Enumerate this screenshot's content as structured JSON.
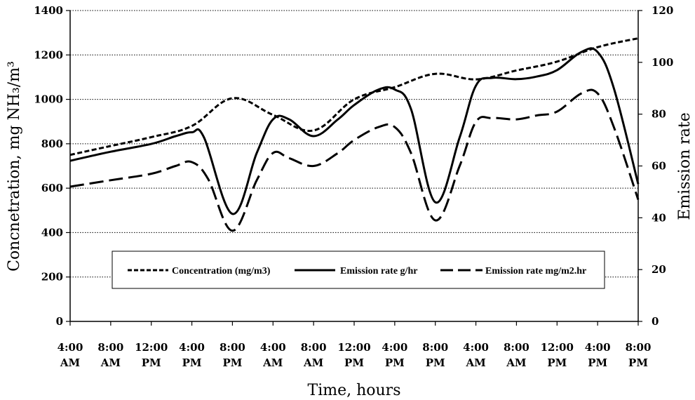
{
  "chart_data": {
    "type": "line",
    "xlabel": "Time, hours",
    "ylabel": "Concnetration, mg NH₃/m³",
    "y2label": "Emission rate",
    "categories": [
      [
        "4:00",
        "AM"
      ],
      [
        "8:00",
        "AM"
      ],
      [
        "12:00",
        "PM"
      ],
      [
        "4:00",
        "PM"
      ],
      [
        "8:00",
        "PM"
      ],
      [
        "4:00",
        "AM"
      ],
      [
        "8:00",
        "AM"
      ],
      [
        "12:00",
        "PM"
      ],
      [
        "4:00",
        "PM"
      ],
      [
        "8:00",
        "PM"
      ],
      [
        "4:00",
        "AM"
      ],
      [
        "8:00",
        "AM"
      ],
      [
        "12:00",
        "PM"
      ],
      [
        "4:00",
        "PM"
      ],
      [
        "8:00",
        "PM"
      ]
    ],
    "ylim": [
      0,
      1400
    ],
    "yticks": [
      0,
      200,
      400,
      600,
      800,
      1000,
      1200,
      1400
    ],
    "y2lim": [
      0,
      120
    ],
    "y2ticks": [
      0,
      20,
      40,
      60,
      80,
      100,
      120
    ],
    "grid": "horizontal dotted",
    "legend": "inside-bottom",
    "series": [
      {
        "name": "Concentration (mg/m3)",
        "axis": "left",
        "style": "short-dash",
        "x": [
          0,
          1,
          2,
          3,
          4,
          5,
          6,
          7,
          8,
          9,
          10,
          11,
          12,
          13,
          14
        ],
        "values": [
          750,
          790,
          830,
          880,
          1005,
          930,
          860,
          1000,
          1055,
          1115,
          1090,
          1130,
          1170,
          1235,
          1275
        ]
      },
      {
        "name": "Emission rate g/hr",
        "axis": "right",
        "style": "solid",
        "x": [
          0,
          1,
          2,
          2.6,
          3,
          3.3,
          4,
          4.6,
          5,
          5.4,
          6,
          6.6,
          7,
          7.6,
          8,
          8.4,
          9,
          9.6,
          10,
          10.4,
          11,
          11.5,
          12,
          12.6,
          13,
          13.4,
          14
        ],
        "values": [
          62,
          65.5,
          68.5,
          71.5,
          73,
          71,
          41.5,
          65,
          78,
          78,
          71.5,
          78,
          83.5,
          89.5,
          89.5,
          82,
          46,
          71,
          91,
          94,
          93.5,
          94.5,
          97,
          104,
          104,
          90,
          53
        ]
      },
      {
        "name": "Emission rate mg/m2.hr",
        "axis": "right",
        "style": "long-dash",
        "x": [
          0,
          1,
          2,
          2.6,
          3,
          3.4,
          4,
          4.6,
          5,
          5.4,
          6,
          6.6,
          7,
          7.6,
          8,
          8.4,
          9,
          9.6,
          10,
          10.4,
          11,
          11.5,
          12,
          12.6,
          13,
          13.4,
          14
        ],
        "values": [
          52,
          54.5,
          57,
          60,
          61.5,
          55,
          35,
          54.5,
          65,
          63,
          60,
          65,
          70,
          75,
          75,
          65,
          39,
          60,
          77,
          78.5,
          78,
          79.5,
          81,
          88,
          88,
          75,
          47
        ]
      }
    ]
  }
}
